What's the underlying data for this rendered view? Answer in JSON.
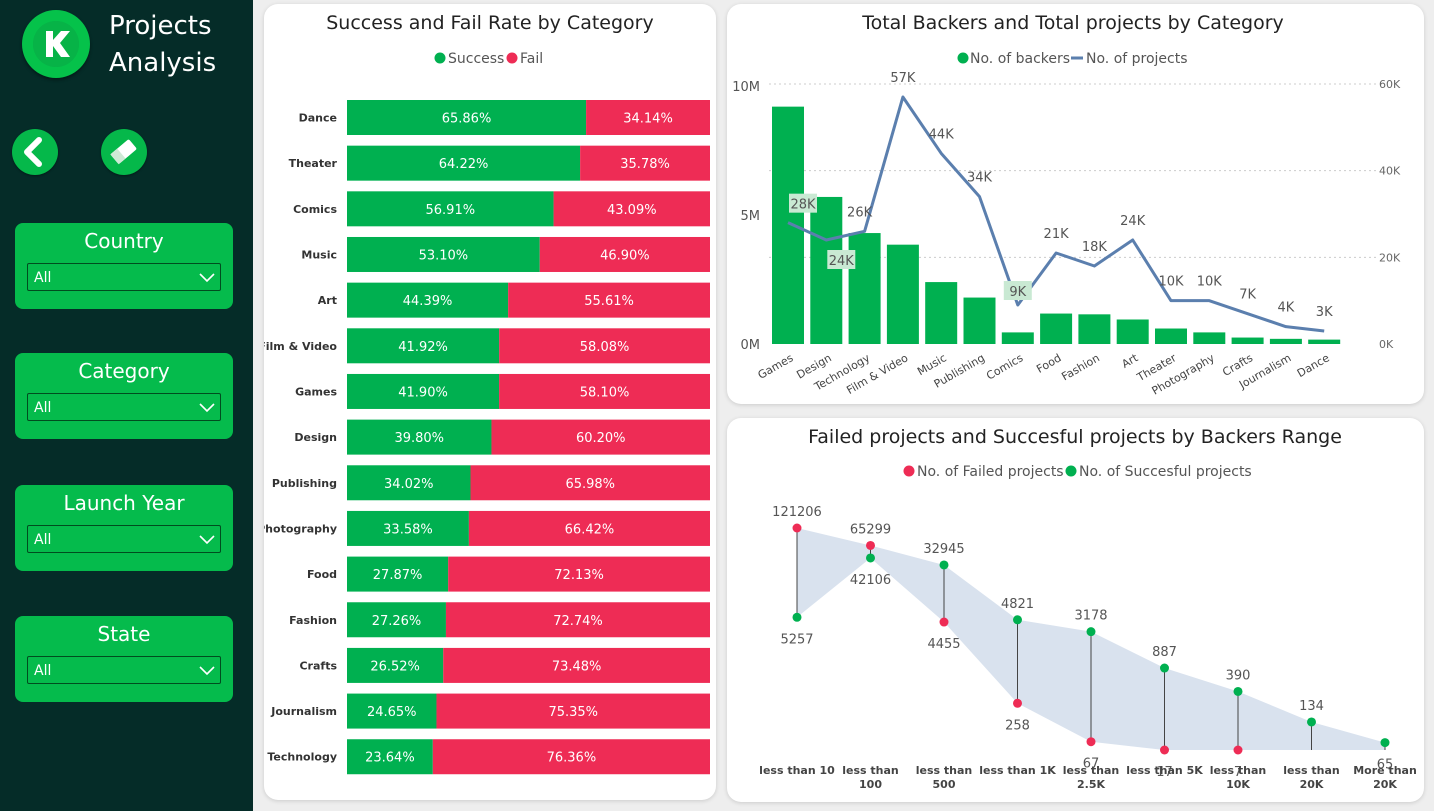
{
  "sidebar": {
    "title_line1": "Projects",
    "title_line2": "Analysis",
    "filters": [
      {
        "label": "Country",
        "value": "All"
      },
      {
        "label": "Category",
        "value": "All"
      },
      {
        "label": "Launch Year",
        "value": "All"
      },
      {
        "label": "State",
        "value": "All"
      }
    ]
  },
  "colors": {
    "success": "#00b050",
    "fail": "#ee2c55",
    "line": "#5b7fae",
    "band": "#d9e2ee",
    "sidebar": "#052c28"
  },
  "chart_data": [
    {
      "type": "bar",
      "orientation": "horizontal-stacked-100",
      "title": "Success and Fail Rate by Category",
      "legend_position": "top-center",
      "categories": [
        "Dance",
        "Theater",
        "Comics",
        "Music",
        "Art",
        "Film & Video",
        "Games",
        "Design",
        "Publishing",
        "Photography",
        "Food",
        "Fashion",
        "Crafts",
        "Journalism",
        "Technology"
      ],
      "series": [
        {
          "name": "Success",
          "values": [
            65.86,
            64.22,
            56.91,
            53.1,
            44.39,
            41.92,
            41.9,
            39.8,
            34.02,
            33.58,
            27.87,
            27.26,
            26.52,
            24.65,
            23.64
          ],
          "labels": [
            "65.86%",
            "64.22%",
            "56.91%",
            "53.10%",
            "44.39%",
            "41.92%",
            "41.90%",
            "39.80%",
            "34.02%",
            "33.58%",
            "27.87%",
            "27.26%",
            "26.52%",
            "24.65%",
            "23.64%"
          ]
        },
        {
          "name": "Fail",
          "values": [
            34.14,
            35.78,
            43.09,
            46.9,
            55.61,
            58.08,
            58.1,
            60.2,
            65.98,
            66.42,
            72.13,
            72.74,
            73.48,
            75.35,
            76.36
          ],
          "labels": [
            "34.14%",
            "35.78%",
            "43.09%",
            "46.90%",
            "55.61%",
            "58.08%",
            "58.10%",
            "60.20%",
            "65.98%",
            "66.42%",
            "72.13%",
            "72.74%",
            "73.48%",
            "75.35%",
            "76.36%"
          ]
        }
      ]
    },
    {
      "type": "bar",
      "combo": "bar+line",
      "title": "Total Backers and Total projects by Category",
      "legend_position": "top-center",
      "categories": [
        "Games",
        "Design",
        "Technology",
        "Film & Video",
        "Music",
        "Publishing",
        "Comics",
        "Food",
        "Fashion",
        "Art",
        "Theater",
        "Photography",
        "Crafts",
        "Journalism",
        "Dance"
      ],
      "series": [
        {
          "name": "No. of backers",
          "type": "bar",
          "axis": "left",
          "values": [
            9200000,
            5700000,
            4300000,
            3850000,
            2400000,
            1800000,
            450000,
            1180000,
            1150000,
            950000,
            600000,
            450000,
            250000,
            200000,
            170000
          ]
        },
        {
          "name": "No. of projects",
          "type": "line",
          "axis": "right",
          "values": [
            28000,
            24000,
            26000,
            57000,
            44000,
            34000,
            9000,
            21000,
            18000,
            24000,
            10000,
            10000,
            7000,
            4000,
            3000
          ],
          "labels": [
            "28K",
            "24K",
            "26K",
            "57K",
            "44K",
            "34K",
            "9K",
            "21K",
            "18K",
            "24K",
            "10K",
            "10K",
            "7K",
            "4K",
            "3K"
          ]
        }
      ],
      "y_left": {
        "ylim": [
          0,
          10000000
        ],
        "ticks": [
          "0M",
          "5M",
          "10M"
        ]
      },
      "y_right": {
        "ylim": [
          0,
          60000
        ],
        "ticks": [
          "0K",
          "20K",
          "40K",
          "60K"
        ]
      },
      "grid": true
    },
    {
      "type": "line",
      "style": "dumbbell-with-band",
      "title": "Failed projects and Succesful projects by Backers Range",
      "legend_position": "top-center",
      "categories": [
        "less than 10",
        "less than 100",
        "less than 500",
        "less than 1K",
        "less than 2.5K",
        "less than 5K",
        "less than 10K",
        "less than 20K",
        "More than 20K"
      ],
      "category_lines": [
        [
          "less than 10"
        ],
        [
          "less than",
          "100"
        ],
        [
          "less than",
          "500"
        ],
        [
          "less than 1K"
        ],
        [
          "less than",
          "2.5K"
        ],
        [
          "less than 5K"
        ],
        [
          "less than",
          "10K"
        ],
        [
          "less than",
          "20K"
        ],
        [
          "More than",
          "20K"
        ]
      ],
      "series": [
        {
          "name": "No. of Failed projects",
          "values": [
            121206,
            65299,
            4455,
            258,
            67,
            17,
            7,
            null,
            null
          ]
        },
        {
          "name": "No. of Succesful projects",
          "values": [
            5257,
            42106,
            32945,
            4821,
            3178,
            887,
            390,
            134,
            65
          ]
        }
      ],
      "scale": "log"
    }
  ]
}
